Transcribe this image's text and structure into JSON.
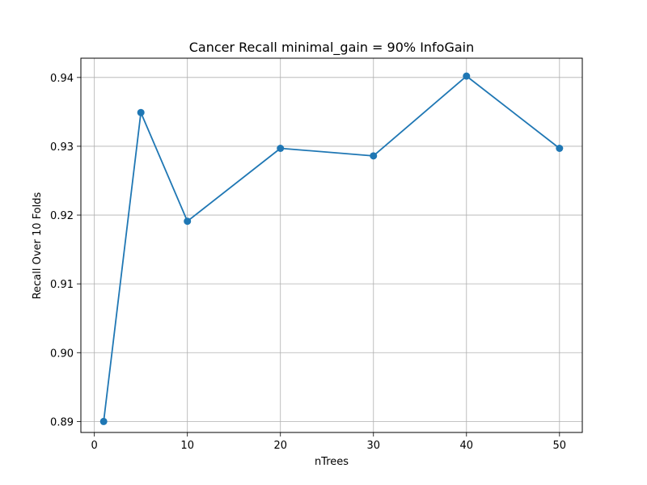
{
  "chart_data": {
    "type": "line",
    "title": "Cancer Recall minimal_gain = 90% InfoGain",
    "xlabel": "nTrees",
    "ylabel": "Recall Over 10 Folds",
    "x": [
      1,
      5,
      10,
      20,
      30,
      40,
      50
    ],
    "series": [
      {
        "values": [
          0.89,
          0.9349,
          0.9191,
          0.9297,
          0.9286,
          0.9402,
          0.9297
        ],
        "color": "#1f77b4",
        "marker": "circle"
      }
    ],
    "xlim": [
      -1.45,
      52.45
    ],
    "ylim": [
      0.8884,
      0.9428
    ],
    "xticks": [
      0,
      10,
      20,
      30,
      40,
      50
    ],
    "xtick_labels": [
      "0",
      "10",
      "20",
      "30",
      "40",
      "50"
    ],
    "yticks": [
      0.89,
      0.9,
      0.91,
      0.92,
      0.93,
      0.94
    ],
    "ytick_labels": [
      "0.89",
      "0.90",
      "0.91",
      "0.92",
      "0.93",
      "0.94"
    ],
    "grid": true,
    "grid_color": "#b0b0b0"
  }
}
